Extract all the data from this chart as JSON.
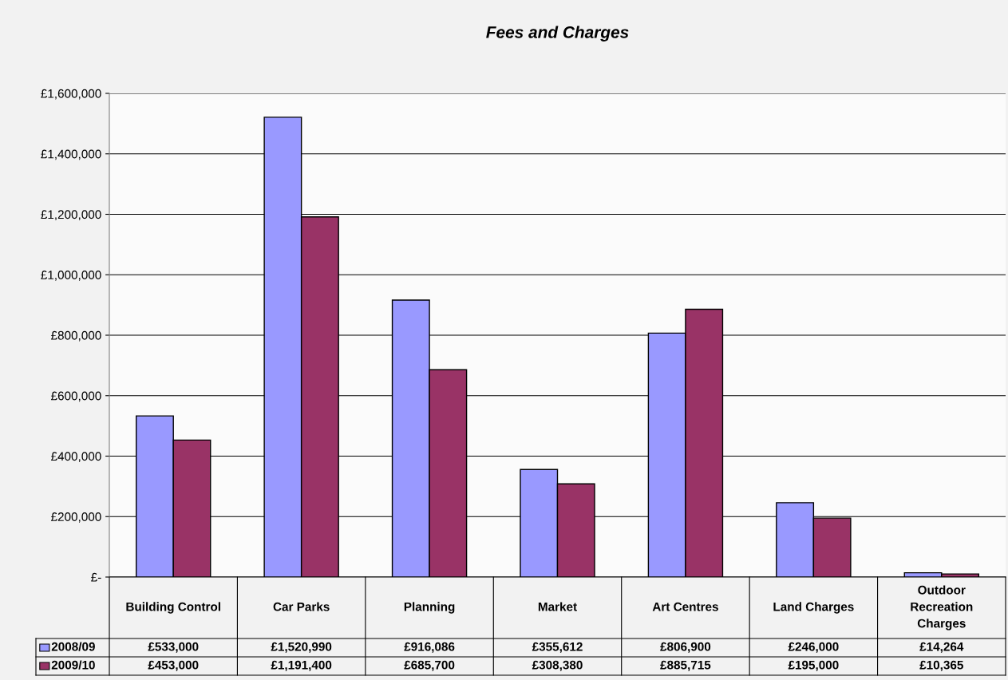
{
  "chart_data": {
    "type": "bar",
    "title": "Fees and Charges",
    "categories": [
      "Building Control",
      "Car Parks",
      "Planning",
      "Market",
      "Art Centres",
      "Land Charges",
      "Outdoor\nRecreation\nCharges"
    ],
    "series": [
      {
        "name": "2008/09",
        "color": "#9999ff",
        "values": [
          533000,
          1520990,
          916086,
          355612,
          806900,
          246000,
          14264
        ],
        "value_labels": [
          "£533,000",
          "£1,520,990",
          "£916,086",
          "£355,612",
          "£806,900",
          "£246,000",
          "£14,264"
        ]
      },
      {
        "name": "2009/10",
        "color": "#993366",
        "values": [
          453000,
          1191400,
          685700,
          308380,
          885715,
          195000,
          10365
        ],
        "value_labels": [
          "£453,000",
          "£1,191,400",
          "£685,700",
          "£308,380",
          "£885,715",
          "£195,000",
          "£10,365"
        ]
      }
    ],
    "ylim": [
      0,
      1600000
    ],
    "yticks": [
      {
        "value": 0,
        "label": "£-"
      },
      {
        "value": 200000,
        "label": "£200,000"
      },
      {
        "value": 400000,
        "label": "£400,000"
      },
      {
        "value": 600000,
        "label": "£600,000"
      },
      {
        "value": 800000,
        "label": "£800,000"
      },
      {
        "value": 1000000,
        "label": "£1,000,000"
      },
      {
        "value": 1200000,
        "label": "£1,200,000"
      },
      {
        "value": 1400000,
        "label": "£1,400,000"
      },
      {
        "value": 1600000,
        "label": "£1,600,000"
      }
    ],
    "grid": "y",
    "legend": "bottom left"
  }
}
